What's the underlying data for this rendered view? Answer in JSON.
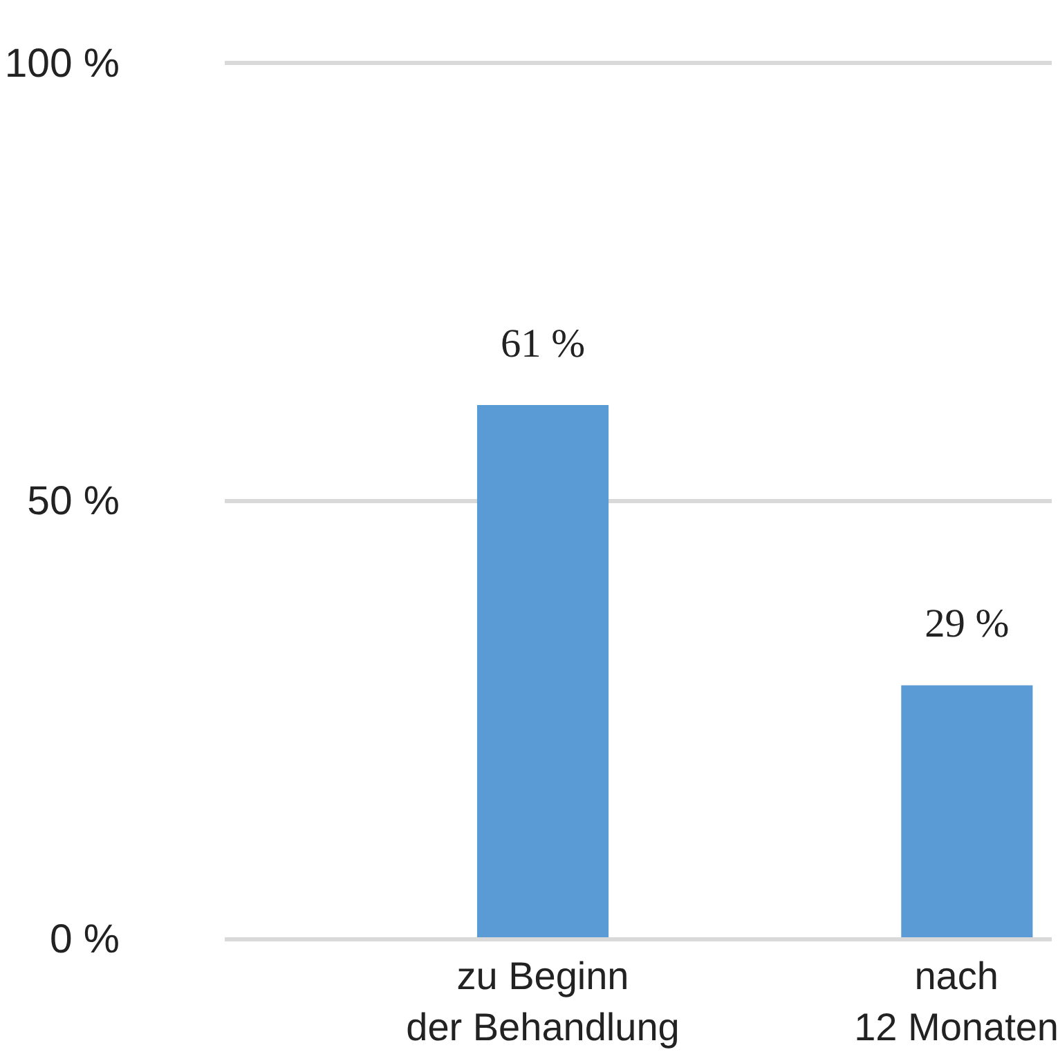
{
  "chart_data": {
    "type": "bar",
    "categories": [
      "zu Beginn\nder Behandlung",
      "nach\n12 Monaten"
    ],
    "series": [
      {
        "color": "#5b9bd5",
        "values": [
          61,
          29
        ]
      }
    ],
    "value_labels": [
      "61 %",
      "29 %"
    ],
    "ylim": [
      0,
      100
    ],
    "yticks": [
      {
        "value": 0,
        "label": "0 %"
      },
      {
        "value": 50,
        "label": "50 %"
      },
      {
        "value": 100,
        "label": "100 %"
      }
    ],
    "grid": "y"
  }
}
